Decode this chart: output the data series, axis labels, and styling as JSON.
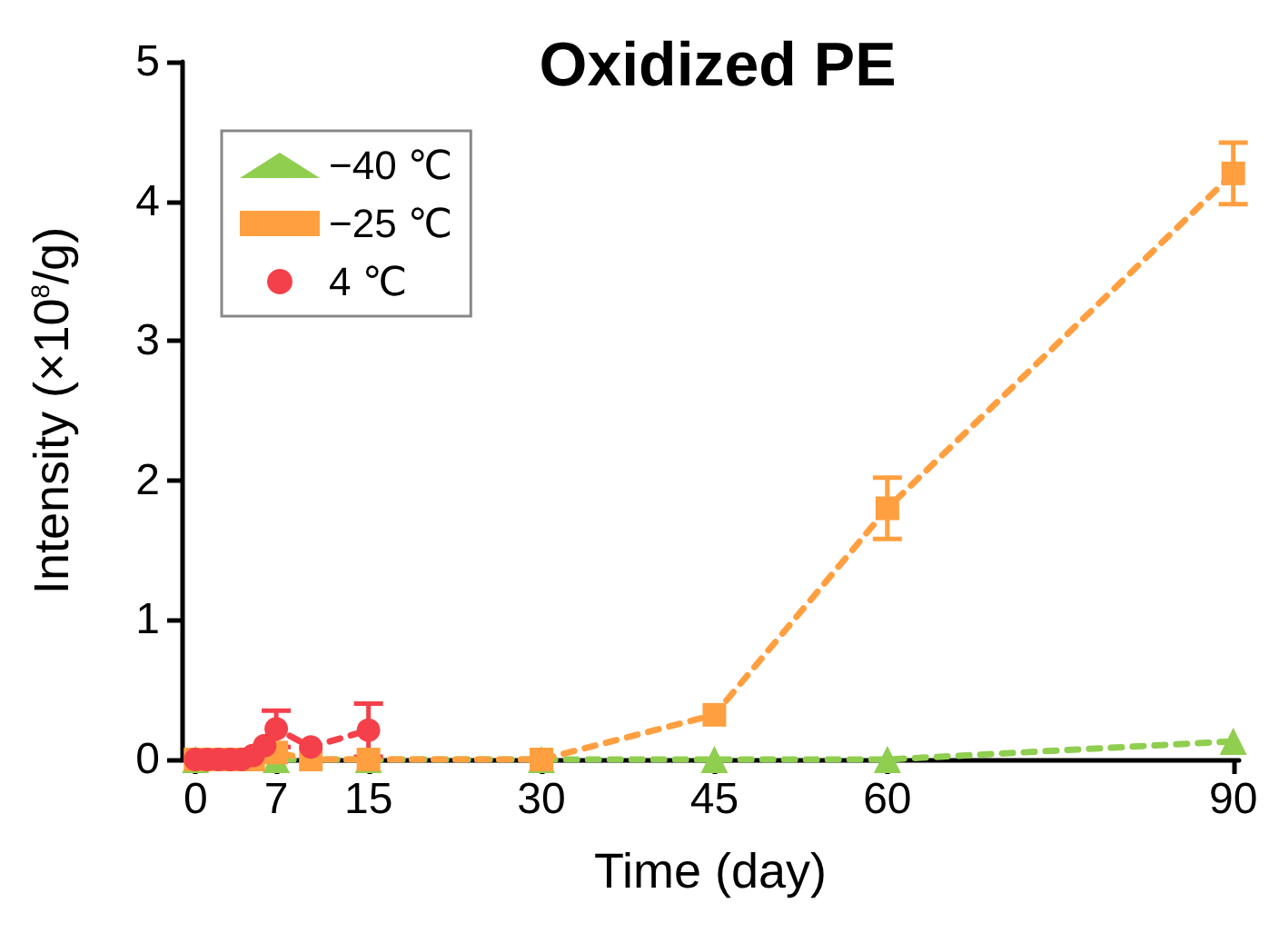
{
  "chart_data": {
    "type": "line",
    "title": "Oxidized PE",
    "xlabel": "Time (day)",
    "ylabel": "Intensity (×10$^{8}$/g)",
    "xlim": [
      -1.2,
      90.5
    ],
    "xticks": [
      0,
      7,
      15,
      30,
      45,
      60,
      90
    ],
    "ylim": [
      0,
      5
    ],
    "yticks": [
      0,
      1,
      2,
      3,
      4,
      5
    ],
    "grid": false,
    "legend": "top left",
    "line_style": "dashed",
    "series": [
      {
        "name": "−40 ℃",
        "color": "#8fce4f",
        "marker": "triangle",
        "x": [
          0,
          7,
          15,
          30,
          45,
          60,
          90
        ],
        "values": [
          0,
          0,
          0,
          0,
          0,
          0,
          0.13
        ]
      },
      {
        "name": "−25 ℃",
        "color": "#ff9f40",
        "marker": "square",
        "x": [
          0,
          1,
          2,
          3,
          4,
          5,
          7,
          10,
          15,
          30,
          45,
          60,
          90
        ],
        "values": [
          0,
          0,
          0,
          0,
          0,
          0,
          0.05,
          0,
          0,
          0,
          0.32,
          1.8,
          4.2
        ],
        "errors": [
          null,
          null,
          null,
          null,
          null,
          null,
          null,
          null,
          null,
          null,
          null,
          0.22,
          0.22
        ]
      },
      {
        "name": "4 ℃",
        "color": "#f4404a",
        "marker": "circle",
        "x": [
          0,
          1,
          2,
          3,
          4,
          5,
          6,
          7,
          10,
          15
        ],
        "values": [
          0,
          0,
          0,
          0,
          0,
          0.03,
          0.1,
          0.22,
          0.09,
          0.21
        ],
        "errors": [
          null,
          null,
          null,
          null,
          null,
          null,
          null,
          0.13,
          null,
          0.19
        ]
      }
    ]
  }
}
